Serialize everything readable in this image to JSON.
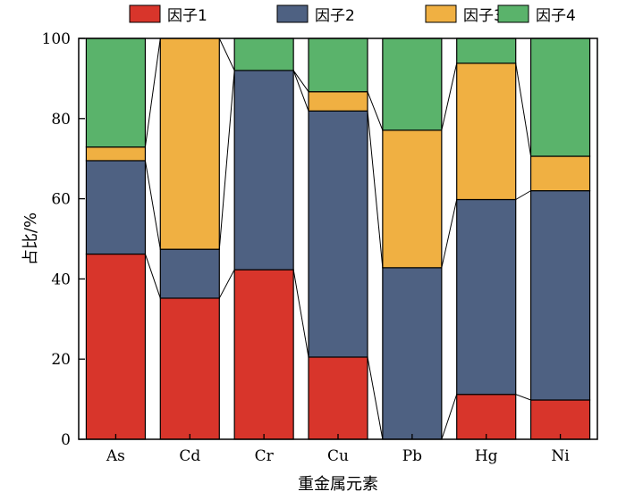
{
  "chart_data": {
    "type": "bar",
    "stacked": true,
    "categories": [
      "As",
      "Cd",
      "Cr",
      "Cu",
      "Pb",
      "Hg",
      "Ni"
    ],
    "series": [
      {
        "name": "因子1",
        "color": "#d8352b",
        "values": [
          46.2,
          35.2,
          42.3,
          20.5,
          0,
          11.2,
          9.8
        ]
      },
      {
        "name": "因子2",
        "color": "#4e6182",
        "values": [
          23.3,
          12.2,
          49.7,
          61.4,
          42.8,
          48.6,
          52.2
        ]
      },
      {
        "name": "因子3",
        "color": "#f0b042",
        "values": [
          3.4,
          52.6,
          0,
          4.8,
          34.3,
          34.0,
          8.6
        ]
      },
      {
        "name": "因子4",
        "color": "#5ab36b",
        "values": [
          27.1,
          0,
          8.0,
          13.3,
          22.9,
          6.2,
          29.4
        ]
      }
    ],
    "xlabel": "重金属元素",
    "ylabel": "占比/%",
    "ylim": [
      0,
      100
    ],
    "yticks": [
      0,
      20,
      40,
      60,
      80,
      100
    ],
    "legend_position": "top",
    "connector_lines": true,
    "grid": false
  }
}
